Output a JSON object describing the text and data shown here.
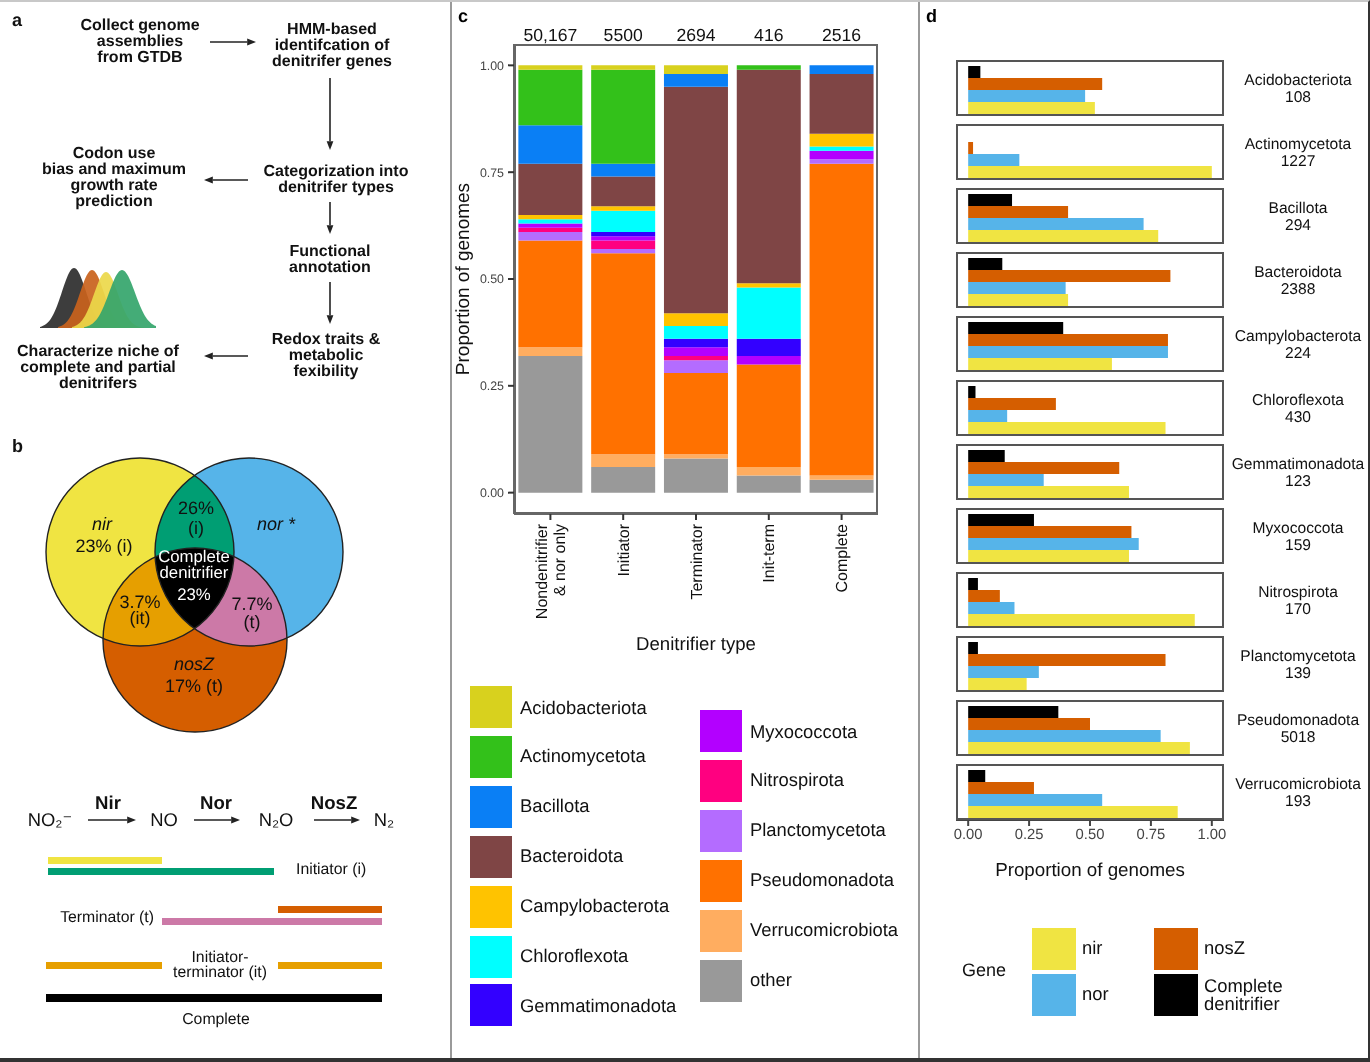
{
  "chart_data": [
    {
      "type": "other",
      "title": "a",
      "annotations": [
        "Collect genome\nassemblies\nfrom GTDB",
        "HMM-based\nidentifcation of\ndenitrifer genes",
        "Categorization into\ndenitrifer types",
        "Codon use\nbias and maximum\ngrowth rate\nprediction",
        "Functional\nannotation",
        "Redox traits &\nmetabolic\nfexibility",
        "Characterize niche of\ncomplete and partial\ndenitrifers"
      ]
    },
    {
      "type": "other",
      "title": "b",
      "annotations": [
        "nir",
        "23% (i)",
        "26%",
        "(i)",
        "nor *",
        "Complete\ndenitrifier",
        "23%",
        "3.7%",
        "(it)",
        "7.7%",
        "(t)",
        "nosZ",
        "17% (t)",
        "Nir",
        "Nor",
        "NosZ",
        "NO₂⁻",
        "NO",
        "N₂O",
        "N₂",
        "Initiator (i)",
        "Terminator (t)",
        "Initiator-\nterminator (it)",
        "Complete"
      ]
    },
    {
      "type": "bar",
      "stacked": true,
      "title": "c",
      "xlabel": "Denitrifier type",
      "ylabel": "Proportion of genomes",
      "legend": "bottom",
      "categories": [
        "Nondenitrifier & nor only",
        "Initiator",
        "Terminator",
        "Init-term",
        "Complete"
      ],
      "ylim": [
        -0.05,
        1.05
      ],
      "yticks": [
        {
          "value": 0,
          "label": "0.00"
        },
        {
          "value": 0.25,
          "label": "0.25"
        },
        {
          "value": 0.5,
          "label": "0.50"
        },
        {
          "value": 0.75,
          "label": "0.75"
        },
        {
          "value": 1,
          "label": "1.00"
        }
      ],
      "annotations": [
        {
          "text": "50,167",
          "x": "Nondenitrifier & nor only",
          "y": 1
        },
        {
          "text": "5500",
          "x": "Initiator",
          "y": 1
        },
        {
          "text": "2694",
          "x": "Terminator",
          "y": 1
        },
        {
          "text": "416",
          "x": "Init-term",
          "y": 1
        },
        {
          "text": "2516",
          "x": "Complete",
          "y": 1
        }
      ],
      "series": [
        {
          "name": "other",
          "color": "#999999",
          "values": [
            0.32,
            0.06,
            0.08,
            0.04,
            0.03
          ]
        },
        {
          "name": "Verrucomicrobiota",
          "color": "#ffad60",
          "values": [
            0.02,
            0.03,
            0.01,
            0.02,
            0.01
          ]
        },
        {
          "name": "Pseudomonadota",
          "color": "#ff7100",
          "values": [
            0.25,
            0.47,
            0.19,
            0.24,
            0.73
          ]
        },
        {
          "name": "Planctomycetota",
          "color": "#b46cff",
          "values": [
            0.02,
            0.01,
            0.03,
            0,
            0.01
          ]
        },
        {
          "name": "Nitrospirota",
          "color": "#ff0080",
          "values": [
            0.01,
            0.02,
            0.01,
            0,
            0
          ]
        },
        {
          "name": "Myxococcota",
          "color": "#b300ff",
          "values": [
            0.01,
            0.01,
            0.02,
            0.02,
            0.02
          ]
        },
        {
          "name": "Gemmatimonadota",
          "color": "#3300ff",
          "values": [
            0,
            0.01,
            0.02,
            0.04,
            0
          ]
        },
        {
          "name": "Chloroflexota",
          "color": "#00ffff",
          "values": [
            0.01,
            0.05,
            0.03,
            0.12,
            0.01
          ]
        },
        {
          "name": "Campylobacterota",
          "color": "#ffc300",
          "values": [
            0.01,
            0.01,
            0.03,
            0.01,
            0.03
          ]
        },
        {
          "name": "Bacteroidota",
          "color": "#7f4545",
          "values": [
            0.12,
            0.07,
            0.53,
            0.5,
            0.14
          ]
        },
        {
          "name": "Bacillota",
          "color": "#0a7ff5",
          "values": [
            0.09,
            0.03,
            0.03,
            0,
            0.02
          ]
        },
        {
          "name": "Actinomycetota",
          "color": "#33c11a",
          "values": [
            0.13,
            0.22,
            0,
            0.01,
            0
          ]
        },
        {
          "name": "Acidobacteriota",
          "color": "#d8d11e",
          "values": [
            0.01,
            0.01,
            0.02,
            0,
            0
          ]
        }
      ]
    },
    {
      "type": "bar",
      "orientation": "horizontal",
      "title": "d",
      "xlabel": "Proportion of genomes",
      "legend_title": "Gene",
      "legend": "bottom",
      "categories": [
        "Acidobacteriota\n108",
        "Actinomycetota\n1227",
        "Bacillota\n294",
        "Bacteroidota\n2388",
        "Campylobacterota\n224",
        "Chloroflexota\n430",
        "Gemmatimonadota\n123",
        "Myxococcota\n159",
        "Nitrospirota\n170",
        "Planctomycetota\n139",
        "Pseudomonadota\n5018",
        "Verrucomicrobiota\n193"
      ],
      "xlim": [
        -0.05,
        1.05
      ],
      "xticks": [
        {
          "value": 0,
          "label": "0.00"
        },
        {
          "value": 0.25,
          "label": "0.25"
        },
        {
          "value": 0.5,
          "label": "0.50"
        },
        {
          "value": 0.75,
          "label": "0.75"
        },
        {
          "value": 1,
          "label": "1.00"
        }
      ],
      "series": [
        {
          "name": "nir",
          "color": "#f0e442",
          "values": [
            0.52,
            1,
            0.78,
            0.41,
            0.59,
            0.81,
            0.66,
            0.66,
            0.93,
            0.24,
            0.91,
            0.86
          ]
        },
        {
          "name": "nor",
          "color": "#56b4e9",
          "values": [
            0.48,
            0.21,
            0.72,
            0.4,
            0.82,
            0.16,
            0.31,
            0.7,
            0.19,
            0.29,
            0.79,
            0.55
          ]
        },
        {
          "name": "nosZ",
          "color": "#d55e00",
          "values": [
            0.55,
            0.02,
            0.41,
            0.83,
            0.82,
            0.36,
            0.62,
            0.67,
            0.13,
            0.81,
            0.5,
            0.27
          ]
        },
        {
          "name": "Complete denitrifier",
          "color": "#000000",
          "values": [
            0.05,
            0,
            0.18,
            0.14,
            0.39,
            0.03,
            0.15,
            0.27,
            0.04,
            0.04,
            0.37,
            0.07
          ]
        }
      ]
    }
  ]
}
